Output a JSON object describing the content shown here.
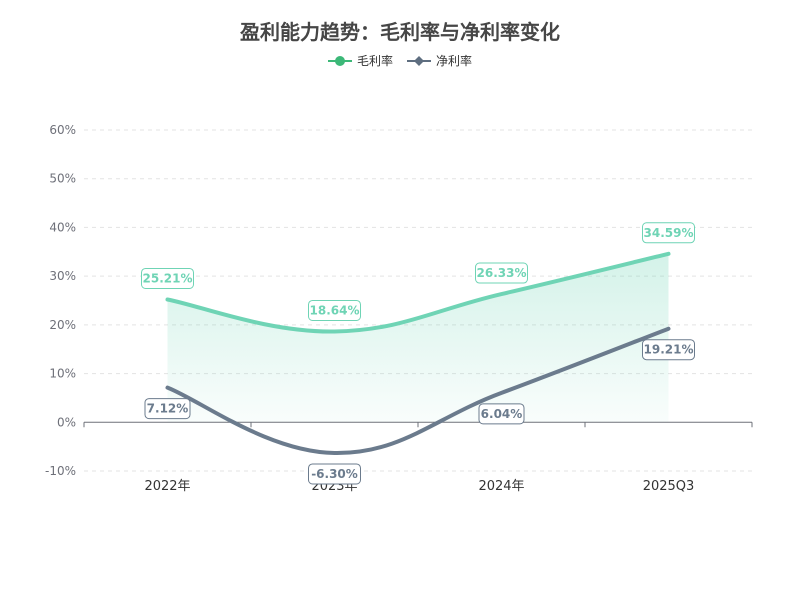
{
  "chart_data": {
    "type": "line",
    "title": "盈利能力趋势：毛利率与净利率变化",
    "categories": [
      "2022年",
      "2023年",
      "2024年",
      "2025Q3"
    ],
    "ylim": [
      -10,
      60
    ],
    "y_ticks": [
      -10,
      0,
      10,
      20,
      30,
      40,
      50,
      60
    ],
    "y_tick_suffix": "%",
    "grid": true,
    "legend_position": "top-center",
    "series": [
      {
        "name": "毛利率",
        "values": [
          25.21,
          18.64,
          26.33,
          34.59
        ],
        "labels": [
          "25.21%",
          "18.64%",
          "26.33%",
          "34.59%"
        ],
        "color": "#6fd4b5",
        "legend_color": "#3cb878",
        "area": true,
        "smooth": true,
        "marker": "circle"
      },
      {
        "name": "净利率",
        "values": [
          7.12,
          -6.3,
          6.04,
          19.21
        ],
        "labels": [
          "7.12%",
          "-6.30%",
          "6.04%",
          "19.21%"
        ],
        "color": "#6b7b8d",
        "legend_color": "#5e6e80",
        "area": false,
        "smooth": true,
        "marker": "diamond"
      }
    ]
  }
}
